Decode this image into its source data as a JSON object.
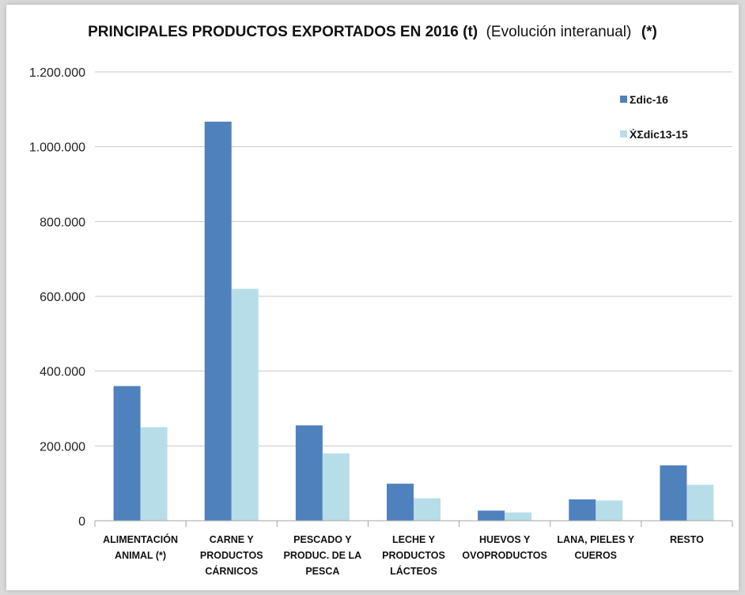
{
  "chart_data": {
    "type": "bar",
    "title": {
      "main": "PRINCIPALES PRODUCTOS EXPORTADOS EN 2016 (t)",
      "sub": "(Evolución interanual)",
      "note": "(*)"
    },
    "categories": [
      [
        "ALIMENTACIÓN",
        "ANIMAL (*)"
      ],
      [
        "CARNE Y",
        "PRODUCTOS",
        "CÁRNICOS"
      ],
      [
        "PESCADO Y",
        "PRODUC. DE LA",
        "PESCA"
      ],
      [
        "LECHE Y",
        "PRODUCTOS",
        "LÁCTEOS"
      ],
      [
        "HUEVOS Y",
        "OVOPRODUCTOS"
      ],
      [
        "LANA, PIELES Y",
        "CUEROS"
      ],
      [
        "RESTO"
      ]
    ],
    "series": [
      {
        "name": "Σdic-16",
        "color": "#4f81bd",
        "values": [
          360000,
          1067000,
          255000,
          99000,
          27000,
          57000,
          148000
        ]
      },
      {
        "name": "ẊΣdic13-15",
        "color": "#b7dde8",
        "values": [
          250000,
          620000,
          180000,
          60000,
          22000,
          54000,
          96000
        ]
      }
    ],
    "ylim": [
      0,
      1200000
    ],
    "yticks": [
      0,
      200000,
      400000,
      600000,
      800000,
      1000000,
      1200000
    ],
    "ytick_labels": [
      "0",
      "200.000",
      "400.000",
      "600.000",
      "800.000",
      "1.000.000",
      "1.200.000"
    ],
    "grid": true,
    "legend_position": "top-right",
    "xlabel": "",
    "ylabel": ""
  }
}
